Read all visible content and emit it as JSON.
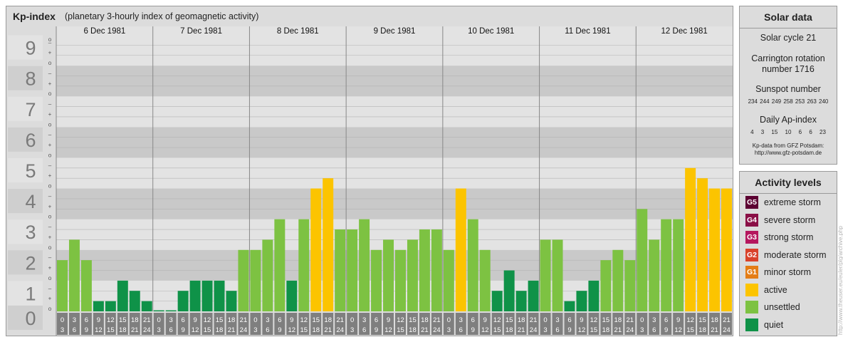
{
  "header": {
    "title": "Kp-index",
    "subtitle": "(planetary 3-hourly index of geomagnetic activity)"
  },
  "chart_data": {
    "type": "bar",
    "title": "Kp-index",
    "subtitle": "(planetary 3-hourly index of geomagnetic activity)",
    "ylim": [
      0,
      9
    ],
    "y_ticks": [
      "0",
      "1",
      "2",
      "3",
      "4",
      "5",
      "6",
      "7",
      "8",
      "9"
    ],
    "sub_ticks": [
      "o",
      "+",
      "–"
    ],
    "days": [
      "6 Dec 1981",
      "7 Dec 1981",
      "8 Dec 1981",
      "9 Dec 1981",
      "10 Dec 1981",
      "11 Dec 1981",
      "12 Dec 1981"
    ],
    "hour_labels": [
      [
        "0",
        "3"
      ],
      [
        "3",
        "6"
      ],
      [
        "6",
        "9"
      ],
      [
        "9",
        "12"
      ],
      [
        "12",
        "15"
      ],
      [
        "15",
        "18"
      ],
      [
        "18",
        "21"
      ],
      [
        "21",
        "24"
      ]
    ],
    "series": [
      {
        "values": [
          1.667,
          2.333,
          1.667,
          0.333,
          0.333,
          1.0,
          0.667,
          0.333,
          0.0,
          0.0,
          0.667,
          1.0,
          1.0,
          1.0,
          0.667,
          2.0,
          2.0,
          2.333,
          3.0,
          1.0,
          3.0,
          4.0,
          4.333,
          2.667,
          2.667,
          3.0,
          2.0,
          2.333,
          2.0,
          2.333,
          2.667,
          2.667,
          2.0,
          4.0,
          3.0,
          2.0,
          0.667,
          1.333,
          0.667,
          1.0,
          2.333,
          2.333,
          0.333,
          0.667,
          1.0,
          1.667,
          2.0,
          1.667,
          3.333,
          2.333,
          3.0,
          3.0,
          4.667,
          4.333,
          4.0,
          4.0
        ]
      }
    ],
    "colors": {
      "quiet": "#0f9248",
      "unsettled": "#7dc242",
      "active": "#fcc400",
      "minor_storm": "#e47d16",
      "band_dark": "#c9c9c9",
      "band_light": "#e3e3e3",
      "grid": "#b3b3b3",
      "hour_box": "#7f7f7f"
    }
  },
  "solar": {
    "title": "Solar data",
    "cycle": "Solar cycle 21",
    "carrington_1": "Carrington rotation",
    "carrington_2": "number 1716",
    "sunspot_title": "Sunspot number",
    "sunspot_values": "234 244 249 258 253 263 240",
    "ap_title": "Daily Ap-index",
    "ap_values": "4 3 15 10 6 6 23",
    "source_1": "Kp-data from GFZ Potsdam:",
    "source_2": "http://www.gfz-potsdam.de"
  },
  "activity": {
    "title": "Activity levels",
    "levels": [
      {
        "code": "G5",
        "label": "extreme storm",
        "color": "#5c0032"
      },
      {
        "code": "G4",
        "label": "severe storm",
        "color": "#8a0f46"
      },
      {
        "code": "G3",
        "label": "strong storm",
        "color": "#b5175e"
      },
      {
        "code": "G2",
        "label": "moderate storm",
        "color": "#d9422b"
      },
      {
        "code": "G1",
        "label": "minor storm",
        "color": "#e47d16"
      },
      {
        "code": "",
        "label": "active",
        "color": "#fcc400"
      },
      {
        "code": "",
        "label": "unsettled",
        "color": "#7dc242"
      },
      {
        "code": "",
        "label": "quiet",
        "color": "#0f9248"
      }
    ]
  },
  "credit": "http://www.theuser.eu/euler/plg/archive.php"
}
